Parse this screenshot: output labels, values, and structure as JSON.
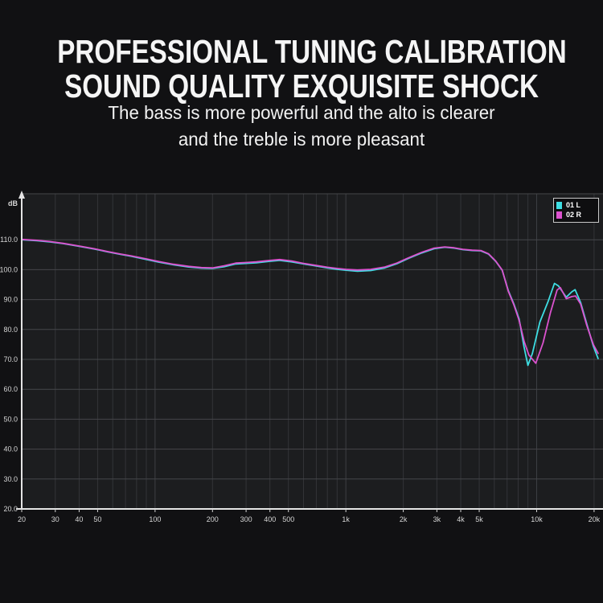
{
  "header": {
    "title_line1": "PROFESSIONAL TUNING CALIBRATION",
    "title_line2": "SOUND QUALITY EXQUISITE SHOCK",
    "subtitle_line1": "The bass is more powerful and the alto is clearer",
    "subtitle_line2": "and the treble is more pleasant"
  },
  "colors": {
    "background": "#111113",
    "plot_bg": "#1c1d1f",
    "grid_horizontal": "#45464a",
    "grid_vertical": "#333438",
    "grid_vertical_major": "#3e3f43",
    "axis": "#e4e4e4",
    "tick_label": "#d6d6d6",
    "title_text": "#f5f5f5",
    "legend_border": "#c8c8c8",
    "legend_bg": "#0e0e10"
  },
  "chart_data": {
    "type": "line",
    "title": "",
    "xlabel": "",
    "ylabel": "dB",
    "y_axis_unit_label": "dB",
    "x_scale": "log",
    "xlim": [
      20,
      21300
    ],
    "ylim": [
      20,
      126
    ],
    "grid": true,
    "legend_position": "top-right",
    "y_ticks": [
      110,
      100,
      90,
      80,
      70,
      60,
      50,
      40,
      30,
      20
    ],
    "y_tick_labels": [
      "110.0",
      "100.0",
      "90.0",
      "80.0",
      "70.0",
      "60.0",
      "50.0",
      "40.0",
      "30.0",
      "20.0"
    ],
    "x_ticks": [
      {
        "f": 20,
        "label": "20"
      },
      {
        "f": 30,
        "label": "30"
      },
      {
        "f": 40,
        "label": "40"
      },
      {
        "f": 50,
        "label": "50"
      },
      {
        "f": 100,
        "label": "100"
      },
      {
        "f": 200,
        "label": "200"
      },
      {
        "f": 300,
        "label": "300"
      },
      {
        "f": 400,
        "label": "400"
      },
      {
        "f": 500,
        "label": "500"
      },
      {
        "f": 1000,
        "label": "1k"
      },
      {
        "f": 2000,
        "label": "2k"
      },
      {
        "f": 3000,
        "label": "3k"
      },
      {
        "f": 4000,
        "label": "4k"
      },
      {
        "f": 5000,
        "label": "5k"
      },
      {
        "f": 10000,
        "label": "10k"
      },
      {
        "f": 20000,
        "label": "20k"
      }
    ],
    "x_gridlines": [
      30,
      40,
      50,
      60,
      70,
      80,
      90,
      100,
      200,
      300,
      400,
      500,
      600,
      700,
      800,
      900,
      1000,
      2000,
      3000,
      4000,
      5000,
      6000,
      7000,
      8000,
      9000,
      10000,
      20000
    ],
    "x_gridlines_major": [
      100,
      1000,
      10000
    ],
    "legend": [
      {
        "label": "01 L",
        "color": "#3EDEE3"
      },
      {
        "label": "02 R",
        "color": "#DB52CE"
      }
    ],
    "series": [
      {
        "name": "01 L",
        "color": "#3EDEE3",
        "points": [
          [
            20,
            110
          ],
          [
            24,
            109.7
          ],
          [
            28,
            109.3
          ],
          [
            33,
            108.7
          ],
          [
            40,
            107.8
          ],
          [
            48,
            106.9
          ],
          [
            56,
            106.0
          ],
          [
            65,
            105.2
          ],
          [
            75,
            104.5
          ],
          [
            90,
            103.4
          ],
          [
            105,
            102.5
          ],
          [
            125,
            101.6
          ],
          [
            150,
            100.9
          ],
          [
            175,
            100.5
          ],
          [
            200,
            100.4
          ],
          [
            230,
            101.0
          ],
          [
            265,
            101.9
          ],
          [
            300,
            102.1
          ],
          [
            340,
            102.3
          ],
          [
            400,
            102.8
          ],
          [
            450,
            103.1
          ],
          [
            520,
            102.6
          ],
          [
            600,
            101.9
          ],
          [
            700,
            101.2
          ],
          [
            800,
            100.6
          ],
          [
            900,
            100.1
          ],
          [
            1000,
            99.8
          ],
          [
            1150,
            99.5
          ],
          [
            1350,
            99.7
          ],
          [
            1600,
            100.6
          ],
          [
            1850,
            102.0
          ],
          [
            2100,
            103.6
          ],
          [
            2500,
            105.6
          ],
          [
            2900,
            107.0
          ],
          [
            3300,
            107.5
          ],
          [
            3700,
            107.2
          ],
          [
            4100,
            106.7
          ],
          [
            4600,
            106.4
          ],
          [
            5100,
            106.3
          ],
          [
            5600,
            105.2
          ],
          [
            6100,
            102.8
          ],
          [
            6600,
            99.8
          ],
          [
            7100,
            93.0
          ],
          [
            7600,
            88.5
          ],
          [
            8100,
            83.5
          ],
          [
            8600,
            74.0
          ],
          [
            9000,
            68.0
          ],
          [
            9500,
            72.0
          ],
          [
            10400,
            82.5
          ],
          [
            11500,
            89.5
          ],
          [
            12400,
            95.4
          ],
          [
            13000,
            94.6
          ],
          [
            14300,
            90.8
          ],
          [
            15300,
            92.6
          ],
          [
            15900,
            93.3
          ],
          [
            17000,
            89.0
          ],
          [
            18300,
            82.0
          ],
          [
            19800,
            74.5
          ],
          [
            21000,
            70.3
          ]
        ]
      },
      {
        "name": "02 R",
        "color": "#DB52CE",
        "points": [
          [
            20,
            110.1
          ],
          [
            24,
            109.8
          ],
          [
            28,
            109.4
          ],
          [
            33,
            108.8
          ],
          [
            40,
            107.9
          ],
          [
            48,
            107.0
          ],
          [
            56,
            106.1
          ],
          [
            65,
            105.3
          ],
          [
            75,
            104.6
          ],
          [
            90,
            103.6
          ],
          [
            105,
            102.7
          ],
          [
            125,
            101.8
          ],
          [
            150,
            101.1
          ],
          [
            175,
            100.7
          ],
          [
            200,
            100.6
          ],
          [
            230,
            101.3
          ],
          [
            265,
            102.2
          ],
          [
            300,
            102.4
          ],
          [
            340,
            102.6
          ],
          [
            400,
            103.1
          ],
          [
            450,
            103.4
          ],
          [
            520,
            102.9
          ],
          [
            600,
            102.1
          ],
          [
            700,
            101.4
          ],
          [
            800,
            100.8
          ],
          [
            900,
            100.4
          ],
          [
            1000,
            100.1
          ],
          [
            1150,
            99.9
          ],
          [
            1350,
            100.1
          ],
          [
            1600,
            100.9
          ],
          [
            1850,
            102.2
          ],
          [
            2100,
            103.8
          ],
          [
            2500,
            105.8
          ],
          [
            2900,
            107.2
          ],
          [
            3300,
            107.6
          ],
          [
            3700,
            107.3
          ],
          [
            4100,
            106.8
          ],
          [
            4600,
            106.5
          ],
          [
            5100,
            106.4
          ],
          [
            5600,
            105.3
          ],
          [
            6100,
            102.9
          ],
          [
            6600,
            99.9
          ],
          [
            7100,
            92.8
          ],
          [
            7600,
            88.2
          ],
          [
            8100,
            83.0
          ],
          [
            8600,
            76.0
          ],
          [
            9100,
            71.5
          ],
          [
            9900,
            68.7
          ],
          [
            10800,
            75.5
          ],
          [
            11800,
            85.5
          ],
          [
            12800,
            93.2
          ],
          [
            13300,
            94.0
          ],
          [
            14300,
            90.3
          ],
          [
            15300,
            91.0
          ],
          [
            16000,
            91.2
          ],
          [
            17000,
            88.5
          ],
          [
            18300,
            81.5
          ],
          [
            19800,
            75.0
          ],
          [
            21000,
            72.0
          ]
        ]
      }
    ]
  }
}
